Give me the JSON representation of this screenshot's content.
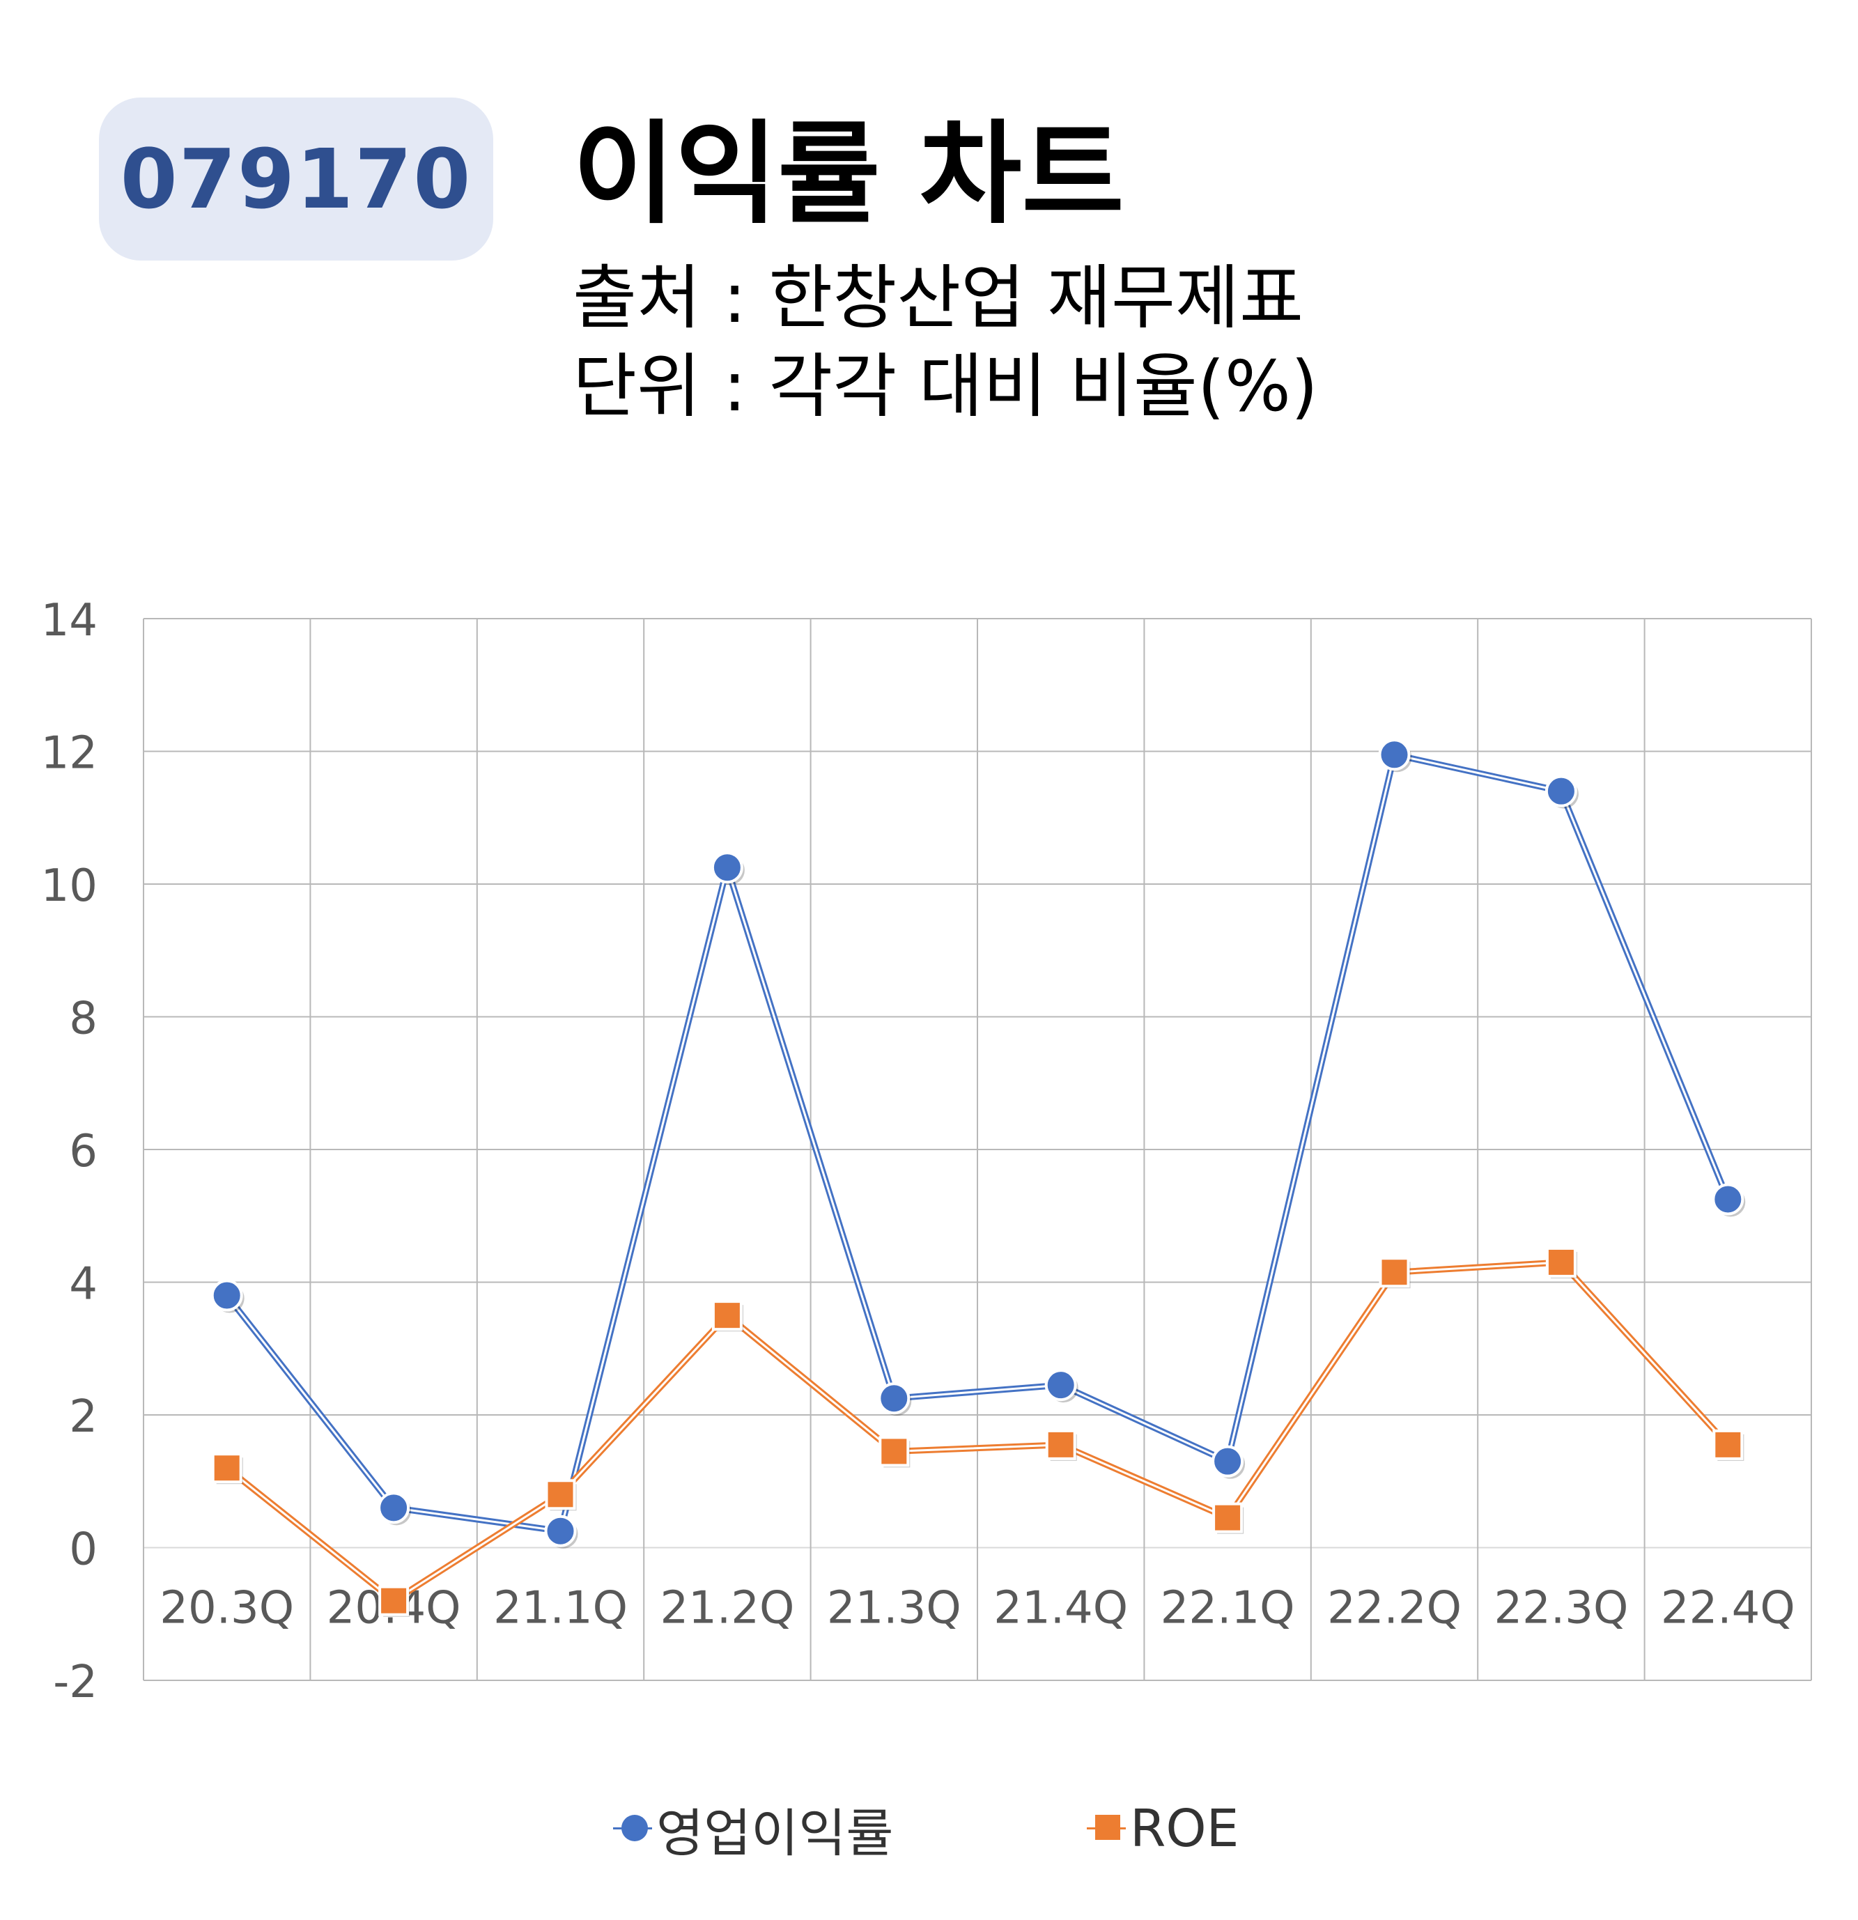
{
  "header": {
    "code": "079170",
    "title": "이익률 차트",
    "source": "출처 : 한창산업 재무제표",
    "unit": "단위 : 각각 대비 비율(%)"
  },
  "colors": {
    "series1": "#4472c4",
    "series2": "#ed7d31",
    "grid": "#b8b8b8",
    "axis_text": "#595959",
    "badge_bg": "#e4e9f5",
    "badge_text": "#2f4f8f"
  },
  "chart_data": {
    "type": "line",
    "categories": [
      "20.3Q",
      "20.4Q",
      "21.1Q",
      "21.2Q",
      "21.3Q",
      "21.4Q",
      "22.1Q",
      "22.2Q",
      "22.3Q",
      "22.4Q"
    ],
    "series": [
      {
        "name": "영업이익률",
        "marker": "circle",
        "values": [
          3.8,
          0.6,
          0.25,
          10.25,
          2.25,
          2.45,
          1.3,
          11.95,
          11.4,
          5.25
        ]
      },
      {
        "name": "ROE",
        "marker": "square",
        "values": [
          1.2,
          -0.8,
          0.8,
          3.5,
          1.45,
          1.55,
          0.45,
          4.15,
          4.3,
          1.55
        ]
      }
    ],
    "ylim": [
      -2,
      14
    ],
    "yticks": [
      -2,
      0,
      2,
      4,
      6,
      8,
      10,
      12,
      14
    ],
    "grid": true,
    "legend": "bottom"
  }
}
